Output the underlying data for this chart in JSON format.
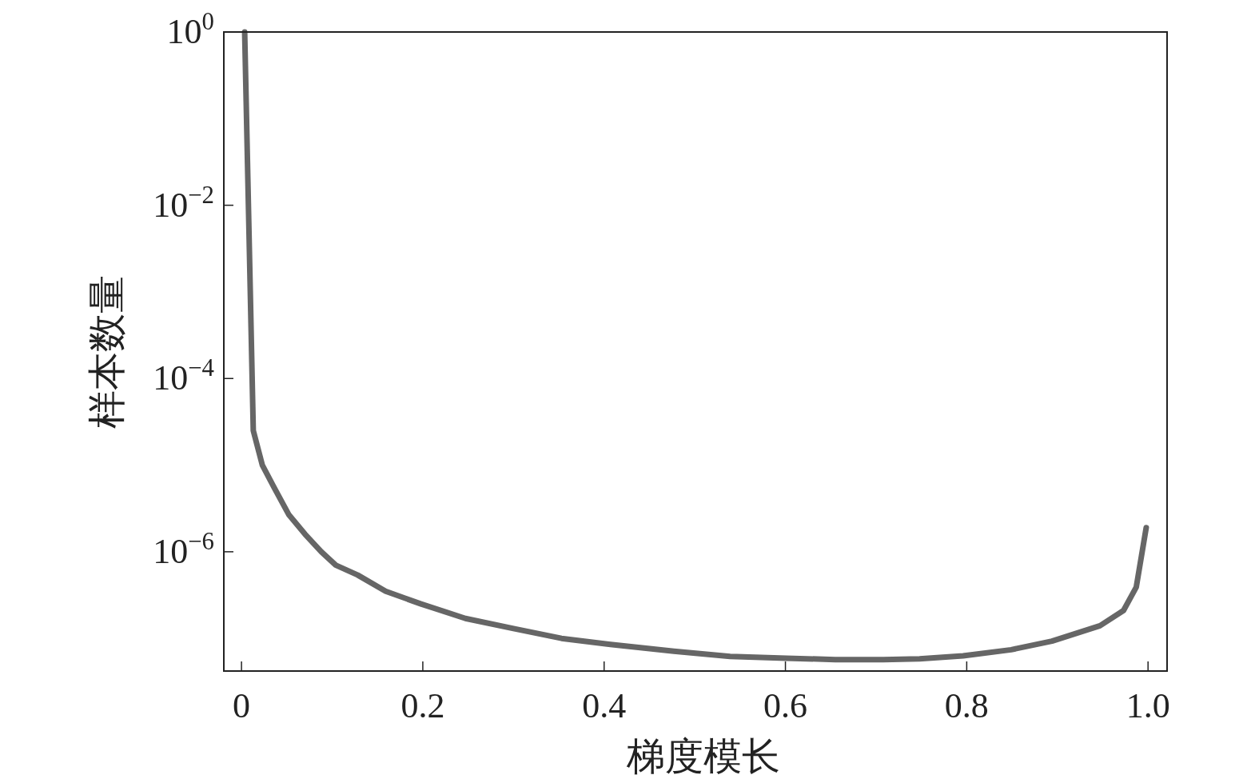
{
  "chart_data": {
    "type": "line",
    "xlabel": "梯度模长",
    "ylabel": "样本数量",
    "log": "y",
    "grid": false,
    "line_style": "solid",
    "xlim": [
      -0.0195,
      1.021
    ],
    "ylim": [
      4.2e-08,
      1
    ],
    "xticks": [
      0,
      0.2,
      0.4,
      0.6,
      0.8,
      {
        "value": 1,
        "label": "1.0"
      }
    ],
    "yticks": [
      {
        "value": 1,
        "label": "10$^{0}$"
      },
      {
        "value": 0.01,
        "label": "10$^{−2}$"
      },
      {
        "value": 0.0001,
        "label": "10$^{−4}$"
      },
      {
        "value": 1e-06,
        "label": "10$^{−6}$"
      }
    ],
    "x": [
      0.0035,
      0.013,
      0.023,
      0.036,
      0.052,
      0.07,
      0.088,
      0.104,
      0.128,
      0.159,
      0.198,
      0.247,
      0.3,
      0.353,
      0.407,
      0.477,
      0.539,
      0.601,
      0.655,
      0.708,
      0.748,
      0.796,
      0.849,
      0.894,
      0.947,
      0.973,
      0.987,
      0.998
    ],
    "series": [
      {
        "color": "#666666",
        "values": [
          1,
          2.5e-05,
          1e-05,
          5.5e-06,
          2.7e-06,
          1.6e-06,
          1e-06,
          7e-07,
          5.4e-07,
          3.5e-07,
          2.5e-07,
          1.7e-07,
          1.3e-07,
          1e-07,
          8.5e-08,
          7.1e-08,
          6.2e-08,
          5.9e-08,
          5.7e-08,
          5.7e-08,
          5.8e-08,
          6.3e-08,
          7.4e-08,
          9.3e-08,
          1.4e-07,
          2.1e-07,
          3.9e-07,
          1.9e-06
        ]
      }
    ]
  }
}
